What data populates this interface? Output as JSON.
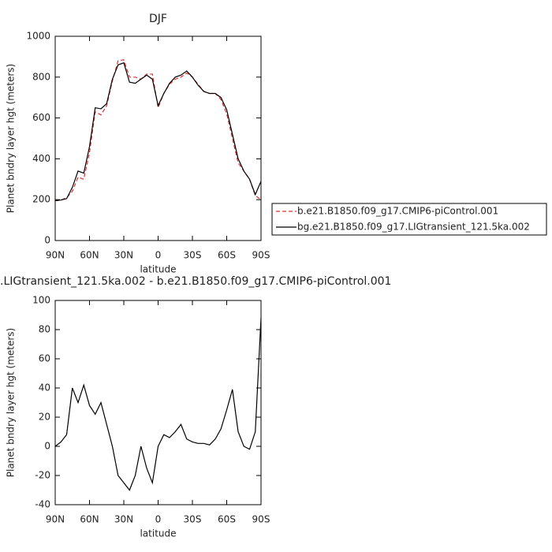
{
  "chart_data": [
    {
      "type": "line",
      "title": "DJF",
      "xlabel": "latitude",
      "ylabel": "Planet bndry layer hgt (meters)",
      "x": [
        90,
        85,
        80,
        75,
        70,
        65,
        60,
        55,
        50,
        45,
        40,
        35,
        30,
        25,
        20,
        15,
        10,
        5,
        0,
        -5,
        -10,
        -15,
        -20,
        -25,
        -30,
        -35,
        -40,
        -45,
        -50,
        -55,
        -60,
        -65,
        -70,
        -75,
        -80,
        -85,
        -90
      ],
      "series": [
        {
          "name": "b.e21.B1850.f09_g17.CMIP6-piControl.001",
          "color": "#e03030",
          "dash": true,
          "values": [
            195,
            198,
            210,
            240,
            310,
            300,
            430,
            630,
            615,
            660,
            780,
            880,
            885,
            800,
            800,
            790,
            815,
            815,
            650,
            720,
            765,
            790,
            800,
            820,
            800,
            765,
            730,
            720,
            720,
            690,
            620,
            500,
            380,
            340,
            300,
            220,
            200
          ]
        },
        {
          "name": "bg.e21.B1850.f09_g17.LIGtransient_121.5ka.002",
          "color": "#000000",
          "dash": false,
          "values": [
            195,
            198,
            205,
            260,
            340,
            330,
            460,
            650,
            645,
            670,
            790,
            860,
            870,
            775,
            770,
            790,
            810,
            790,
            660,
            720,
            770,
            800,
            810,
            830,
            800,
            760,
            730,
            720,
            720,
            700,
            640,
            520,
            400,
            340,
            300,
            225,
            290
          ]
        }
      ],
      "xlim": [
        90,
        -90
      ],
      "ylim": [
        0,
        1000
      ],
      "xticks": [
        {
          "value": 90,
          "label": "90N"
        },
        {
          "value": 60,
          "label": "60N"
        },
        {
          "value": 30,
          "label": "30N"
        },
        0,
        {
          "value": -30,
          "label": "30S"
        },
        {
          "value": -60,
          "label": "60S"
        },
        {
          "value": -90,
          "label": "90S"
        }
      ],
      "yticks": [
        0,
        200,
        400,
        600,
        800,
        1000
      ],
      "legend": "outside-right"
    },
    {
      "type": "line",
      "title": ".LIGtransient_121.5ka.002 - b.e21.B1850.f09_g17.CMIP6-piControl.001",
      "xlabel": "latitude",
      "ylabel": "Planet bndry layer hgt (meters)",
      "x": [
        90,
        85,
        80,
        75,
        70,
        65,
        60,
        55,
        50,
        45,
        40,
        35,
        30,
        25,
        20,
        15,
        10,
        5,
        0,
        -5,
        -10,
        -15,
        -20,
        -25,
        -30,
        -35,
        -40,
        -45,
        -50,
        -55,
        -60,
        -65,
        -70,
        -75,
        -80,
        -85,
        -90
      ],
      "series": [
        {
          "color": "#000000",
          "dash": false,
          "values": [
            0,
            3,
            8,
            40,
            30,
            42,
            28,
            22,
            30,
            15,
            0,
            -20,
            -25,
            -30,
            -20,
            0,
            -15,
            -25,
            0,
            8,
            6,
            10,
            15,
            5,
            3,
            2,
            2,
            1,
            5,
            12,
            25,
            39,
            10,
            0,
            -2,
            10,
            88
          ]
        }
      ],
      "xlim": [
        90,
        -90
      ],
      "ylim": [
        -40,
        100
      ],
      "xticks": [
        {
          "value": 90,
          "label": "90N"
        },
        {
          "value": 60,
          "label": "60N"
        },
        {
          "value": 30,
          "label": "30N"
        },
        0,
        {
          "value": -30,
          "label": "30S"
        },
        {
          "value": -60,
          "label": "60S"
        },
        {
          "value": -90,
          "label": "90S"
        }
      ],
      "yticks": [
        -40,
        -20,
        0,
        20,
        40,
        60,
        80,
        100
      ]
    }
  ]
}
